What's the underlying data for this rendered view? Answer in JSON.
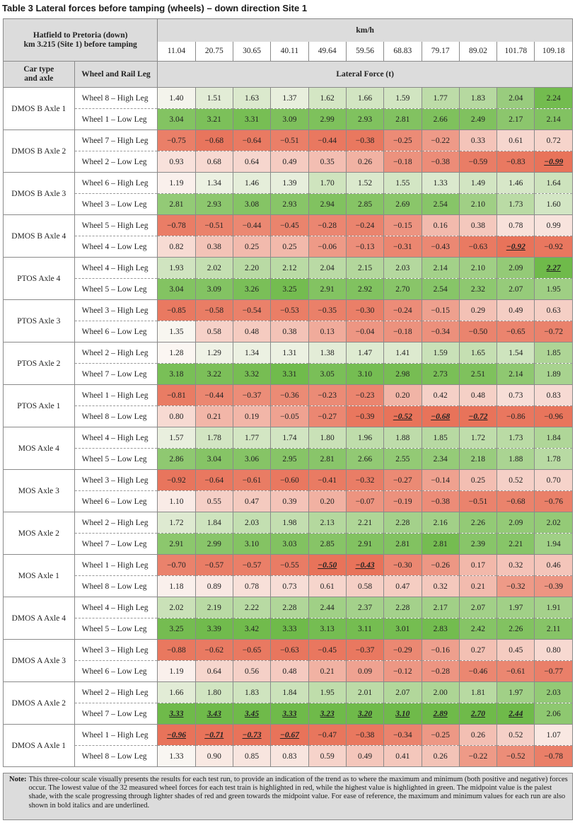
{
  "caption": {
    "table_no": "Table 3",
    "title": "Lateral forces before tamping (wheels) – down direction Site 1"
  },
  "header": {
    "site_line1": "Hatfield to Pretoria (down)",
    "site_line2": "km 3.215 (Site 1) before tamping",
    "speed_unit": "km/h",
    "car_type_line1": "Car type",
    "car_type_line2": "and axle",
    "wheel_leg": "Wheel and Rail Leg",
    "lateral_force": "Lateral Force (t)",
    "speeds": [
      "11.04",
      "20.75",
      "30.65",
      "40.11",
      "49.64",
      "59.56",
      "68.83",
      "79.17",
      "89.02",
      "101.78",
      "109.18"
    ]
  },
  "colors": {
    "min_red": "#e8735a",
    "mid_white": "#fbf7f4",
    "max_green": "#6fba4a"
  },
  "rows": [
    {
      "group": "DMOS B Axle 1",
      "label": "Wheel 8 – High Leg",
      "values": [
        "1.40",
        "1.51",
        "1.63",
        "1.37",
        "1.62",
        "1.66",
        "1.59",
        "1.77",
        "1.83",
        "2.04",
        "2.24"
      ],
      "ext": []
    },
    {
      "group": "DMOS B Axle 1",
      "label": "Wheel 1 – Low Leg",
      "values": [
        "3.04",
        "3.21",
        "3.31",
        "3.09",
        "2.99",
        "2.93",
        "2.81",
        "2.66",
        "2.49",
        "2.17",
        "2.14"
      ],
      "ext": []
    },
    {
      "group": "DMOS B Axle 2",
      "label": "Wheel 7 – High Leg",
      "values": [
        "−0.75",
        "−0.68",
        "−0.64",
        "−0.51",
        "−0.44",
        "−0.38",
        "−0.25",
        "−0.22",
        "0.33",
        "0.61",
        "0.72"
      ],
      "ext": []
    },
    {
      "group": "DMOS B Axle 2",
      "label": "Wheel 2 – Low Leg",
      "values": [
        "0.93",
        "0.68",
        "0.64",
        "0.49",
        "0.35",
        "0.26",
        "−0.18",
        "−0.38",
        "−0.59",
        "−0.83",
        "−0.99"
      ],
      "ext": [
        10
      ]
    },
    {
      "group": "DMOS B Axle 3",
      "label": "Wheel 6 – High Leg",
      "values": [
        "1.19",
        "1.34",
        "1.46",
        "1.39",
        "1.70",
        "1.52",
        "1.55",
        "1.33",
        "1.49",
        "1.46",
        "1.64"
      ],
      "ext": []
    },
    {
      "group": "DMOS B Axle 3",
      "label": "Wheel 3 – Low Leg",
      "values": [
        "2.81",
        "2.93",
        "3.08",
        "2.93",
        "2.94",
        "2.85",
        "2.69",
        "2.54",
        "2.10",
        "1.73",
        "1.60"
      ],
      "ext": []
    },
    {
      "group": "DMOS B Axle 4",
      "label": "Wheel 5 – High Leg",
      "values": [
        "−0.78",
        "−0.51",
        "−0.44",
        "−0.45",
        "−0.28",
        "−0.24",
        "−0.15",
        "0.16",
        "0.38",
        "0.78",
        "0.99"
      ],
      "ext": []
    },
    {
      "group": "DMOS B Axle 4",
      "label": "Wheel 4 – Low Leg",
      "values": [
        "0.82",
        "0.38",
        "0.25",
        "0.25",
        "−0.06",
        "−0.13",
        "−0.31",
        "−0.43",
        "−0.63",
        "−0.92",
        "−0.92"
      ],
      "ext": [
        9
      ]
    },
    {
      "group": "PTOS Axle 4",
      "label": "Wheel 4 – High Leg",
      "values": [
        "1.93",
        "2.02",
        "2.20",
        "2.12",
        "2.04",
        "2.15",
        "2.03",
        "2.14",
        "2.10",
        "2.09",
        "2.27"
      ],
      "ext": [
        10
      ]
    },
    {
      "group": "PTOS Axle 4",
      "label": "Wheel 5 – Low Leg",
      "values": [
        "3.04",
        "3.09",
        "3.26",
        "3.25",
        "2.91",
        "2.92",
        "2.70",
        "2.54",
        "2.32",
        "2.07",
        "1.95"
      ],
      "ext": []
    },
    {
      "group": "PTOS Axle 3",
      "label": "Wheel 3 – High Leg",
      "values": [
        "−0.85",
        "−0.58",
        "−0.54",
        "−0.53",
        "−0.35",
        "−0.30",
        "−0.24",
        "−0.15",
        "0.29",
        "0.49",
        "0.63"
      ],
      "ext": []
    },
    {
      "group": "PTOS Axle 3",
      "label": "Wheel 6 – Low Leg",
      "values": [
        "1.35",
        "0.58",
        "0.48",
        "0.38",
        "0.13",
        "−0.04",
        "−0.18",
        "−0.34",
        "−0.50",
        "−0.65",
        "−0.72"
      ],
      "ext": []
    },
    {
      "group": "PTOS Axle 2",
      "label": "Wheel 2 – High Leg",
      "values": [
        "1.28",
        "1.29",
        "1.34",
        "1.31",
        "1.38",
        "1.47",
        "1.41",
        "1.59",
        "1.65",
        "1.54",
        "1.85"
      ],
      "ext": []
    },
    {
      "group": "PTOS Axle 2",
      "label": "Wheel 7 – Low Leg",
      "values": [
        "3.18",
        "3.22",
        "3.32",
        "3.31",
        "3.05",
        "3.10",
        "2.98",
        "2.73",
        "2.51",
        "2.14",
        "1.89"
      ],
      "ext": []
    },
    {
      "group": "PTOS Axle 1",
      "label": "Wheel 1 – High Leg",
      "values": [
        "−0.81",
        "−0.44",
        "−0.37",
        "−0.36",
        "−0.23",
        "−0.23",
        "0.20",
        "0.42",
        "0.48",
        "0.73",
        "0.83"
      ],
      "ext": []
    },
    {
      "group": "PTOS Axle 1",
      "label": "Wheel 8 – Low Leg",
      "values": [
        "0.80",
        "0.21",
        "0.19",
        "−0.05",
        "−0.27",
        "−0.39",
        "−0.52",
        "−0.68",
        "−0.72",
        "−0.86",
        "−0.96"
      ],
      "ext": [
        6,
        7,
        8
      ]
    },
    {
      "group": "MOS Axle 4",
      "label": "Wheel 4 – High Leg",
      "values": [
        "1.57",
        "1.78",
        "1.77",
        "1.74",
        "1.80",
        "1.96",
        "1.88",
        "1.85",
        "1.72",
        "1.73",
        "1.84"
      ],
      "ext": []
    },
    {
      "group": "MOS Axle 4",
      "label": "Wheel 5 – Low Leg",
      "values": [
        "2.86",
        "3.04",
        "3.06",
        "2.95",
        "2.81",
        "2.66",
        "2.55",
        "2.34",
        "2.18",
        "1.88",
        "1.78"
      ],
      "ext": []
    },
    {
      "group": "MOS Axle 3",
      "label": "Wheel 3 – High Leg",
      "values": [
        "−0.92",
        "−0.64",
        "−0.61",
        "−0.60",
        "−0.41",
        "−0.32",
        "−0.27",
        "−0.14",
        "0.25",
        "0.52",
        "0.70"
      ],
      "ext": []
    },
    {
      "group": "MOS Axle 3",
      "label": "Wheel 6 – Low Leg",
      "values": [
        "1.10",
        "0.55",
        "0.47",
        "0.39",
        "0.20",
        "−0.07",
        "−0.19",
        "−0.38",
        "−0.51",
        "−0.68",
        "−0.76"
      ],
      "ext": []
    },
    {
      "group": "MOS Axle 2",
      "label": "Wheel 2 – High Leg",
      "values": [
        "1.72",
        "1.84",
        "2.03",
        "1.98",
        "2.13",
        "2.21",
        "2.28",
        "2.16",
        "2.26",
        "2.09",
        "2.02"
      ],
      "ext": []
    },
    {
      "group": "MOS Axle 2",
      "label": "Wheel 7 – Low Leg",
      "values": [
        "2.91",
        "2.99",
        "3.10",
        "3.03",
        "2.85",
        "2.91",
        "2.81",
        "2.81",
        "2.39",
        "2.21",
        "1.94"
      ],
      "ext": []
    },
    {
      "group": "MOS Axle 1",
      "label": "Wheel 1 – High Leg",
      "values": [
        "−0.70",
        "−0.57",
        "−0.57",
        "−0.55",
        "−0.50",
        "−0.43",
        "−0.30",
        "−0.26",
        "0.17",
        "0.32",
        "0.46"
      ],
      "ext": [
        4,
        5
      ]
    },
    {
      "group": "MOS Axle 1",
      "label": "Wheel 8 – Low Leg",
      "values": [
        "1.18",
        "0.89",
        "0.78",
        "0.73",
        "0.61",
        "0.58",
        "0.47",
        "0.32",
        "0.21",
        "−0.32",
        "−0.39"
      ],
      "ext": []
    },
    {
      "group": "DMOS A Axle 4",
      "label": "Wheel 4 – High Leg",
      "values": [
        "2.02",
        "2.19",
        "2.22",
        "2.28",
        "2.44",
        "2.37",
        "2.28",
        "2.17",
        "2.07",
        "1.97",
        "1.91"
      ],
      "ext": []
    },
    {
      "group": "DMOS A Axle 4",
      "label": "Wheel 5 – Low Leg",
      "values": [
        "3.25",
        "3.39",
        "3.42",
        "3.33",
        "3.13",
        "3.11",
        "3.01",
        "2.83",
        "2.42",
        "2.26",
        "2.11"
      ],
      "ext": []
    },
    {
      "group": "DMOS A Axle 3",
      "label": "Wheel 3 – High Leg",
      "values": [
        "−0.88",
        "−0.62",
        "−0.65",
        "−0.63",
        "−0.45",
        "−0.37",
        "−0.29",
        "−0.16",
        "0.27",
        "0.45",
        "0.80"
      ],
      "ext": []
    },
    {
      "group": "DMOS A Axle 3",
      "label": "Wheel 6 – Low Leg",
      "values": [
        "1.19",
        "0.64",
        "0.56",
        "0.48",
        "0.21",
        "0.09",
        "−0.12",
        "−0.28",
        "−0.46",
        "−0.61",
        "−0.77"
      ],
      "ext": []
    },
    {
      "group": "DMOS A Axle 2",
      "label": "Wheel 2 – High Leg",
      "values": [
        "1.66",
        "1.80",
        "1.83",
        "1.84",
        "1.95",
        "2.01",
        "2.07",
        "2.00",
        "1.81",
        "1.97",
        "2.03"
      ],
      "ext": []
    },
    {
      "group": "DMOS A Axle 2",
      "label": "Wheel 7 – Low Leg",
      "values": [
        "3.33",
        "3.43",
        "3.45",
        "3.33",
        "3.23",
        "3.20",
        "3.10",
        "2.89",
        "2.70",
        "2.44",
        "2.06"
      ],
      "ext": [
        0,
        1,
        2,
        3,
        4,
        5,
        6,
        7,
        8,
        9
      ]
    },
    {
      "group": "DMOS A Axle 1",
      "label": "Wheel 1 – High Leg",
      "values": [
        "−0.96",
        "−0.71",
        "−0.73",
        "−0.67",
        "−0.47",
        "−0.38",
        "−0.34",
        "−0.25",
        "0.26",
        "0.52",
        "1.07"
      ],
      "ext": [
        0,
        1,
        2,
        3
      ]
    },
    {
      "group": "DMOS A Axle 1",
      "label": "Wheel 8 – Low Leg",
      "values": [
        "1.33",
        "0.90",
        "0.85",
        "0.83",
        "0.59",
        "0.49",
        "0.41",
        "0.26",
        "−0.22",
        "−0.52",
        "−0.78"
      ],
      "ext": []
    }
  ],
  "note": {
    "label": "Note:",
    "text": "This three-colour scale visually presents the results for each test run, to provide an indication of the trend as to where the maximum and minimum (both positive and negative) forces occur. The lowest value of the 32 measured wheel forces for each test train is highlighted in red, while the highest value is highlighted in green. The midpoint value is the palest shade, with the scale progressing through lighter shades of red and green towards the midpoint value. For ease of reference, the maximum and minimum values for each run are also shown in bold italics and are underlined."
  }
}
